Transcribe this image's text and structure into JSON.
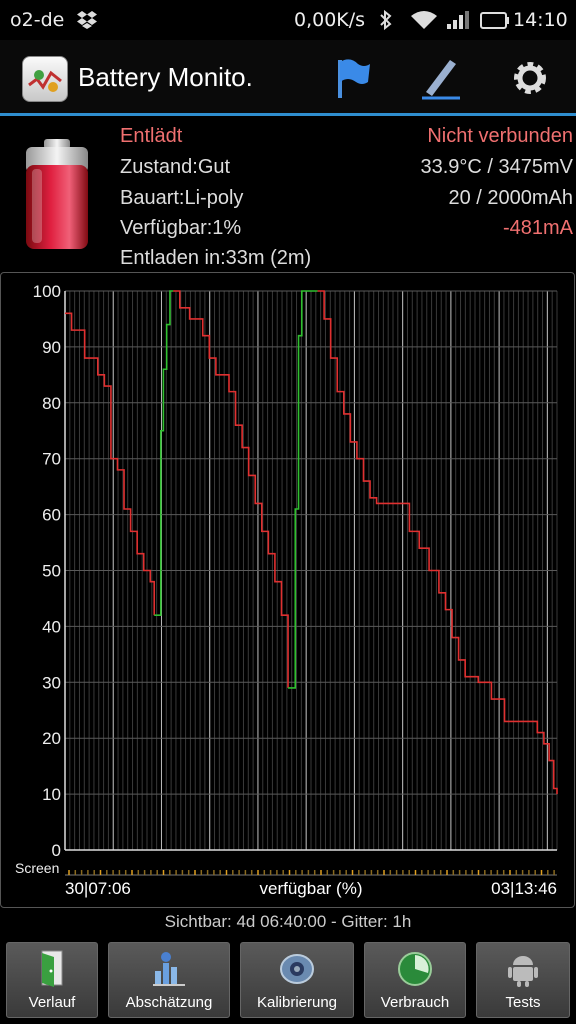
{
  "statusbar": {
    "carrier": "o2-de",
    "speed": "0,00K/s",
    "time": "14:10",
    "icons": [
      "dropbox-icon",
      "bluetooth-icon",
      "wifi-icon",
      "signal-icon",
      "battery-icon"
    ]
  },
  "actionbar": {
    "title": "Battery Monito.",
    "actions": [
      "flag-icon",
      "pen-icon",
      "gear-icon"
    ],
    "accent": "#2f8ecf"
  },
  "info": {
    "state": "Entlädt",
    "connection": "Nicht verbunden",
    "health": "Zustand:Gut",
    "temp_voltage": "33.9°C / 3475mV",
    "type": "Bauart:Li-poly",
    "capacity": "20 / 2000mAh",
    "available": "Verfügbar:1%",
    "current": "-481mA",
    "discharge_time": "Entladen in:33m (2m)",
    "red_color": "#f07070"
  },
  "chart_data": {
    "type": "line",
    "ylim": [
      0,
      100
    ],
    "y_ticks": [
      "100",
      "90",
      "80",
      "70",
      "60",
      "50",
      "40",
      "30",
      "20",
      "10",
      "0"
    ],
    "x_start_label": "30|07:06",
    "x_end_label": "03|13:46",
    "xlabel": "verfügbar (%)",
    "screen_label": "Screen",
    "series": [
      {
        "state": "discharging",
        "color": "#e03030",
        "points": [
          [
            0,
            96
          ],
          [
            1,
            93
          ],
          [
            3,
            88
          ],
          [
            5,
            85
          ],
          [
            6,
            83
          ],
          [
            7,
            70
          ],
          [
            8,
            68
          ],
          [
            9,
            61
          ],
          [
            10,
            57
          ],
          [
            11,
            53
          ],
          [
            12,
            50
          ],
          [
            13,
            48
          ],
          [
            13.6,
            42
          ]
        ]
      },
      {
        "state": "charging",
        "color": "#30c030",
        "points": [
          [
            13.6,
            42
          ],
          [
            14.3,
            42
          ],
          [
            14.6,
            75
          ],
          [
            15,
            86
          ],
          [
            15.5,
            94
          ],
          [
            16,
            100
          ],
          [
            16.5,
            100
          ]
        ]
      },
      {
        "state": "discharging",
        "color": "#e03030",
        "points": [
          [
            16.5,
            100
          ],
          [
            17.5,
            97
          ],
          [
            19,
            95
          ],
          [
            21,
            92
          ],
          [
            22,
            88
          ],
          [
            23,
            85
          ],
          [
            25,
            82
          ],
          [
            26,
            76
          ],
          [
            27,
            72
          ],
          [
            28,
            67
          ],
          [
            29,
            62
          ],
          [
            30,
            57
          ],
          [
            31,
            53
          ],
          [
            32,
            48
          ],
          [
            33,
            42
          ],
          [
            34,
            29
          ]
        ]
      },
      {
        "state": "charging",
        "color": "#30c030",
        "points": [
          [
            34,
            29
          ],
          [
            34.6,
            29
          ],
          [
            35.1,
            61
          ],
          [
            35.6,
            92
          ],
          [
            36.1,
            100
          ],
          [
            38.5,
            100
          ]
        ]
      },
      {
        "state": "discharging",
        "color": "#e03030",
        "points": [
          [
            38.5,
            100
          ],
          [
            39.5,
            95
          ],
          [
            40.5,
            88
          ],
          [
            41.5,
            82
          ],
          [
            42.5,
            78
          ],
          [
            43.5,
            73
          ],
          [
            44.5,
            70
          ],
          [
            45.5,
            66
          ],
          [
            46.5,
            63
          ],
          [
            47.5,
            62
          ],
          [
            51.5,
            62
          ]
        ]
      },
      {
        "state": "discharging",
        "color": "#e03030",
        "points": [
          [
            51.5,
            62
          ],
          [
            52.5,
            57
          ],
          [
            54,
            54
          ],
          [
            55.5,
            50
          ],
          [
            57,
            46
          ],
          [
            58,
            43
          ],
          [
            59,
            38
          ],
          [
            60,
            34
          ],
          [
            61,
            31
          ],
          [
            63,
            30
          ],
          [
            65,
            27
          ],
          [
            67,
            23
          ],
          [
            70,
            23
          ],
          [
            72,
            21
          ],
          [
            73,
            19
          ],
          [
            73.8,
            16
          ],
          [
            74.5,
            11
          ],
          [
            75,
            10
          ]
        ]
      }
    ]
  },
  "footer": {
    "range": "Sichtbar: 4d 06:40:00 - Gitter: 1h"
  },
  "buttons": [
    {
      "label": "Verlauf",
      "icon": "door-icon"
    },
    {
      "label": "Abschätzung",
      "icon": "estimate-icon"
    },
    {
      "label": "Kalibrierung",
      "icon": "calibration-icon"
    },
    {
      "label": "Verbrauch",
      "icon": "usage-icon"
    },
    {
      "label": "Tests",
      "icon": "android-icon"
    }
  ]
}
